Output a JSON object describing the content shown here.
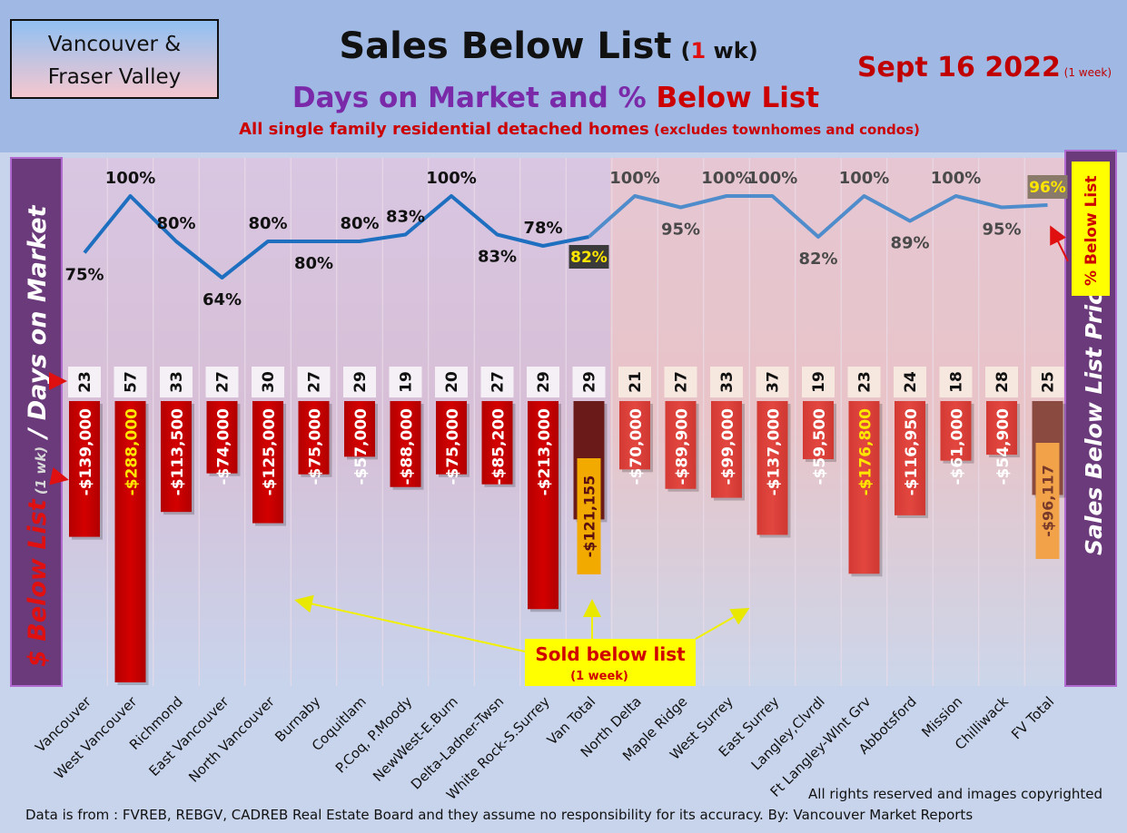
{
  "region_box": {
    "line1": "Vancouver &",
    "line2": "Fraser Valley"
  },
  "header": {
    "title_main": "Sales Below List",
    "title_paren_open": "(",
    "title_paren_num": "1",
    "title_paren_unit": " wk)",
    "subtitle_part1": "Days on Market and % ",
    "subtitle_part2": "Below List",
    "subtitle2_main": "All single family residential detached homes",
    "subtitle2_small": " (excludes townhomes and condos)",
    "date_main": "Sept 16  2022",
    "date_small": " (1 week)"
  },
  "left_axis": {
    "part1": "$ Below List",
    "part2": " (1 wk)",
    "part3": " / Days on Market"
  },
  "right_axis": {
    "label": "Sales Below List Price"
  },
  "pct_legend": {
    "label": "% Below List"
  },
  "sold_box": {
    "line1": "Sold below list",
    "line2": "(1 week)"
  },
  "footer": {
    "rights": "All rights reserved and  images copyrighted",
    "source": "Data is from : FVREB, REBGV, CADREB Real Estate Board and they assume no responsibility for its accuracy. By: Vancouver Market Reports"
  },
  "colors": {
    "bar_red": "#cc0000",
    "bar_total_van": "#6b1a1a",
    "bar_red_fv": "#dd3b35",
    "bar_total_fv": "#8a4a40",
    "line_blue": "#1f6fc0",
    "header_bg": "#9fb8e4",
    "axis_panel": "#6a3a7a"
  },
  "chart_data": {
    "type": "bar",
    "title": "Sales Below List (1 wk)",
    "categories": [
      "Vancouver",
      "West Vancouver",
      "Richmond",
      "East Vancouver",
      "North Vancouver",
      "Burnaby",
      "Coquitlam",
      "P.Coq, P.Moody",
      "NewWest-E.Burn",
      "Delta-Ladner-Twsn",
      "White Rock-S.Surrey",
      "Van Total",
      "North Delta",
      "Maple Ridge",
      "West Surrey",
      "East Surrey",
      "Langley,Clvrdl",
      "Ft Langley-Wlnt Grv",
      "Abbotsford",
      "Mission",
      "Chilliwack",
      "FV Total"
    ],
    "series": [
      {
        "name": "$ Below List (1 wk)",
        "values": [
          -139000,
          -288000,
          -113500,
          -74000,
          -125000,
          -75000,
          -57000,
          -88000,
          -75000,
          -85200,
          -213000,
          -121155,
          -70000,
          -89900,
          -99000,
          -137000,
          -59500,
          -176800,
          -116950,
          -61000,
          -54900,
          -96117
        ],
        "labels": [
          "-$139,000",
          "-$288,000",
          "-$113,500",
          "-$74,000",
          "-$125,000",
          "-$75,000",
          "-$57,000",
          "-$88,000",
          "-$75,000",
          "-$85,200",
          "-$213,000",
          "-$121,155",
          "-$70,000",
          "-$89,900",
          "-$99,000",
          "-$137,000",
          "-$59,500",
          "-$176,800",
          "-$116,950",
          "-$61,000",
          "-$54,900",
          "-$96,117"
        ]
      },
      {
        "name": "Days on Market",
        "values": [
          23,
          57,
          33,
          27,
          30,
          27,
          29,
          19,
          20,
          27,
          29,
          29,
          21,
          27,
          33,
          37,
          19,
          23,
          24,
          18,
          28,
          25
        ]
      },
      {
        "name": "% Below List",
        "type": "line",
        "values": [
          75,
          100,
          80,
          64,
          80,
          80,
          80,
          83,
          100,
          83,
          78,
          82,
          100,
          95,
          100,
          100,
          82,
          100,
          89,
          100,
          95,
          96
        ],
        "labels": [
          "75%",
          "100%",
          "80%",
          "64%",
          "80%",
          "80%",
          "80%",
          "83%",
          "100%",
          "83%",
          "78%",
          "82%",
          "100%",
          "95%",
          "100%",
          "100%",
          "82%",
          "100%",
          "89%",
          "100%",
          "95%",
          "96%"
        ]
      }
    ],
    "ylim": [
      -300000,
      0
    ],
    "grid": true,
    "legend": "none"
  }
}
